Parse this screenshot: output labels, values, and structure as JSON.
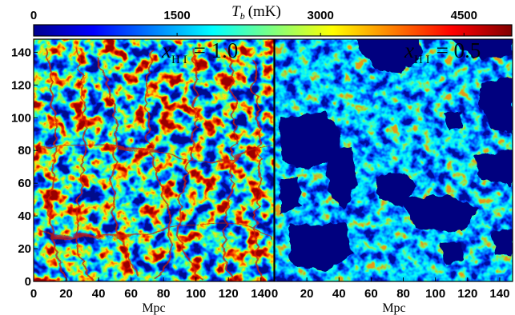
{
  "chart_data": [
    {
      "type": "heatmap",
      "colorbar": {
        "label": "T_b (mK)",
        "label_parts": {
          "symbol": "T",
          "subscript": "b",
          "unit": "(mK)"
        },
        "ticks": [
          "0",
          "1500",
          "3000",
          "4500"
        ],
        "range": [
          0,
          5000
        ],
        "colormap": "jet",
        "colors": [
          "#00008f",
          "#0000ff",
          "#00ffff",
          "#ffff00",
          "#ff0000",
          "#800000"
        ]
      },
      "panels": [
        {
          "id": "left",
          "annotation": "x_H I = 1.0",
          "annotation_parts": {
            "symbol": "x",
            "subscript": "H I",
            "value": "= 1.0"
          },
          "xlabel": "Mpc",
          "xticks": [
            "0",
            "20",
            "40",
            "60",
            "80",
            "100",
            "120",
            "140"
          ],
          "yticks": [
            "0",
            "20",
            "40",
            "60",
            "80",
            "100",
            "120",
            "140"
          ],
          "xlim": [
            0,
            148
          ],
          "ylim": [
            0,
            148
          ],
          "description": "neutral field, filaments peaking near 4500 mK"
        },
        {
          "id": "right",
          "annotation": "x_H I = 0.5",
          "annotation_parts": {
            "symbol": "x",
            "subscript": "H I",
            "value": "= 0.5"
          },
          "xlabel": "Mpc",
          "xticks": [
            "0",
            "20",
            "40",
            "60",
            "80",
            "100",
            "120",
            "140"
          ],
          "xlim": [
            0,
            148
          ],
          "ylim": [
            0,
            148
          ],
          "description": "half-ionized field with ionized bubbles at 0 mK"
        }
      ]
    }
  ]
}
